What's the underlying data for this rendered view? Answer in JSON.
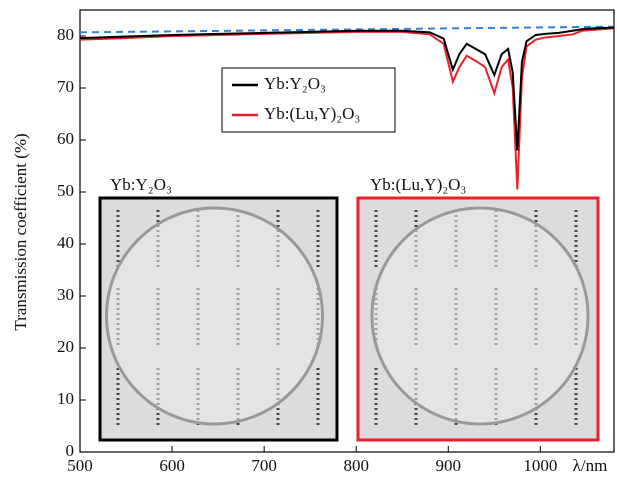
{
  "chart_data": {
    "type": "line",
    "y_label": "Transmission coefficient (%)",
    "x_label": "λ/nm",
    "xlim": [
      500,
      1080
    ],
    "ylim": [
      0,
      85
    ],
    "xticks": [
      500,
      600,
      700,
      800,
      900,
      1000
    ],
    "yticks": [
      0,
      10,
      20,
      30,
      40,
      50,
      60,
      70,
      80
    ],
    "x": [
      500,
      550,
      600,
      650,
      700,
      750,
      800,
      850,
      880,
      895,
      905,
      912,
      920,
      930,
      940,
      950,
      958,
      965,
      970,
      975,
      980,
      985,
      995,
      1005,
      1020,
      1035,
      1045,
      1060,
      1080
    ],
    "series": [
      {
        "name": "Yb:Y₂O₃",
        "color": "#000000",
        "values": [
          79.6,
          79.9,
          80.2,
          80.4,
          80.6,
          80.8,
          81,
          81,
          80.7,
          79.5,
          73.5,
          76.5,
          78.5,
          77.5,
          76.5,
          72.5,
          76.5,
          77.5,
          73,
          58,
          75,
          79,
          80.2,
          80.4,
          80.6,
          81,
          81.3,
          81.5,
          81.6
        ]
      },
      {
        "name": "Yb:(Lu,Y)₂O₃",
        "color": "#e8212a",
        "values": [
          79.3,
          79.6,
          80,
          80.2,
          80.4,
          80.6,
          80.8,
          80.8,
          80.3,
          78.5,
          71.2,
          74,
          76.2,
          75.2,
          74,
          69,
          74,
          75.5,
          70,
          50.5,
          72,
          78,
          79.3,
          79.7,
          80,
          80.3,
          81,
          81.2,
          81.5
        ]
      }
    ],
    "reference_line": {
      "color": "#3a7fd5",
      "x": [
        500,
        1080
      ],
      "values": [
        80.7,
        81.8
      ]
    },
    "insets": [
      {
        "label": "Yb:Y₂O₃",
        "border_color": "#000000"
      },
      {
        "label": "Yb:(Lu,Y)₂O₃",
        "border_color": "#e8212a"
      }
    ]
  }
}
